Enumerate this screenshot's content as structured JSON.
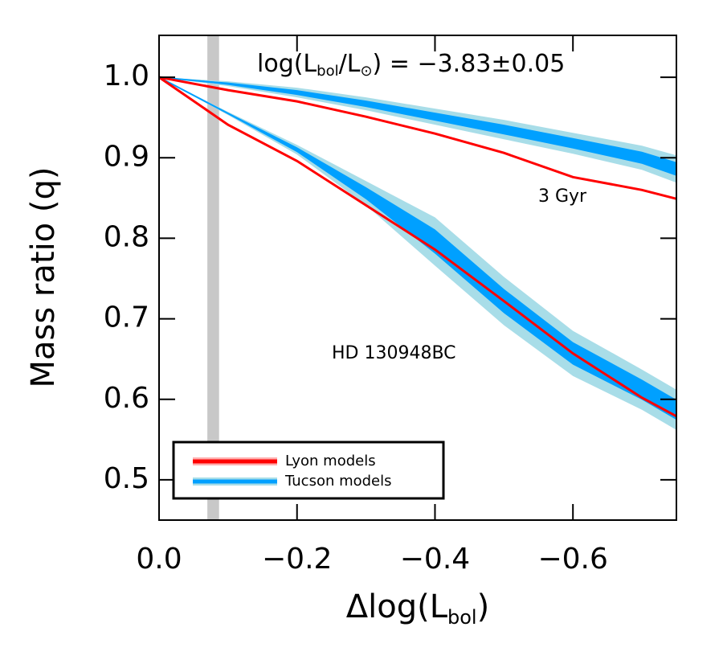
{
  "chart_data": {
    "type": "line",
    "x": [
      0,
      -0.1,
      -0.2,
      -0.3,
      -0.4,
      -0.5,
      -0.6,
      -0.7,
      -0.75
    ],
    "series": [
      {
        "color": "#00a0ff",
        "band_color": "#a8dde8",
        "values": [
          1.0,
          0.992,
          0.981,
          0.967,
          0.951,
          0.935,
          0.918,
          0.9,
          0.886
        ],
        "high": [
          1.0,
          0.995,
          0.987,
          0.975,
          0.961,
          0.947,
          0.931,
          0.915,
          0.903
        ],
        "low": [
          1.0,
          0.989,
          0.975,
          0.959,
          0.941,
          0.923,
          0.905,
          0.885,
          0.869
        ]
      },
      {
        "color": "#00a0ff",
        "band_color": "#a8dde8",
        "values": [
          1.0,
          0.955,
          0.91,
          0.856,
          0.796,
          0.722,
          0.657,
          0.612,
          0.587
        ],
        "high": [
          1.0,
          0.957,
          0.916,
          0.871,
          0.826,
          0.752,
          0.685,
          0.637,
          0.612
        ],
        "low": [
          1.0,
          0.953,
          0.904,
          0.841,
          0.766,
          0.692,
          0.629,
          0.587,
          0.562
        ]
      },
      {
        "color": "#ff0000",
        "values": [
          1.0,
          0.984,
          0.97,
          0.951,
          0.93,
          0.906,
          0.876,
          0.86,
          0.849
        ]
      },
      {
        "color": "#ff0000",
        "values": [
          1.0,
          0.941,
          0.896,
          0.841,
          0.786,
          0.722,
          0.657,
          0.602,
          0.579
        ]
      }
    ],
    "shaded_x": [
      -0.07,
      -0.087
    ],
    "shade_color": "#c8c8c8",
    "xlim": [
      0,
      -0.75
    ],
    "ylim": [
      0.45,
      1.052
    ],
    "xticks": [
      {
        "value": 0,
        "label": "0.0"
      },
      {
        "value": -0.2,
        "label": "−0.2"
      },
      {
        "value": -0.4,
        "label": "−0.4"
      },
      {
        "value": -0.6,
        "label": "−0.6"
      }
    ],
    "yticks": [
      0.5,
      0.6,
      0.7,
      0.8,
      0.9,
      {
        "value": 1,
        "label": "1.0"
      }
    ],
    "ylabel": "Mass ratio (q)",
    "xlabel": [
      "Δlog(L",
      "bol",
      ")"
    ],
    "annotation": [
      "log(L",
      "bol",
      "/L",
      "⊙",
      ")  =  −3.83±0.05"
    ],
    "labels": [
      "3 Gyr",
      "HD 130948BC"
    ],
    "legend": [
      {
        "name": "Lyon models",
        "color": "#ff0000",
        "band_color": "#ffb0b0"
      },
      {
        "name": "Tucson models",
        "color": "#00a0ff",
        "band_color": "#a8dde8"
      }
    ]
  }
}
